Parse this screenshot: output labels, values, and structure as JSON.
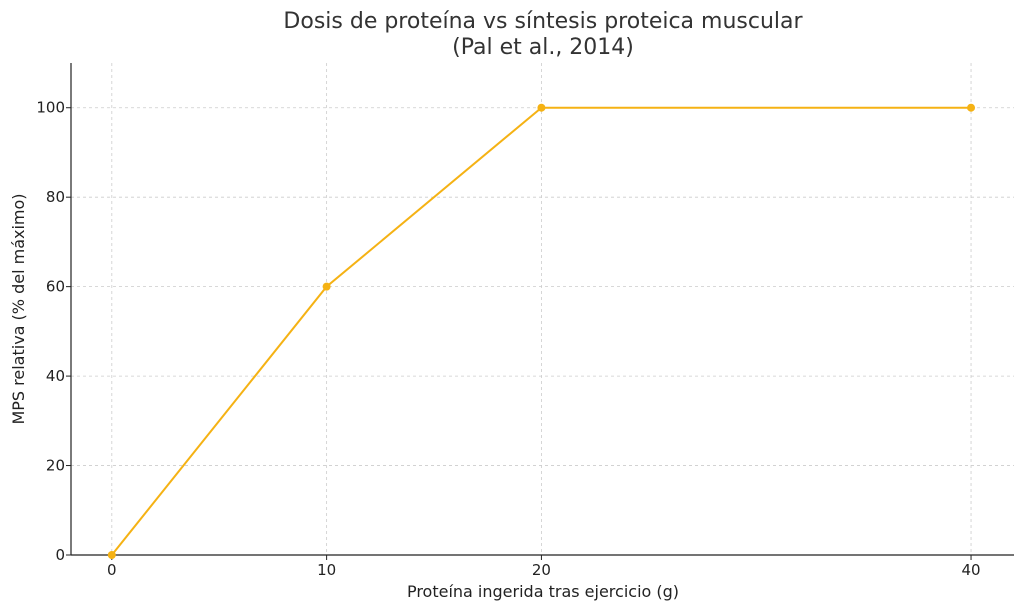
{
  "chart_data": {
    "type": "line",
    "title": "Dosis de proteína vs síntesis proteica muscular",
    "subtitle": "(Pal et al., 2014)",
    "xlabel": "Proteína ingerida tras ejercicio (g)",
    "ylabel": "MPS relativa (% del máximo)",
    "x": [
      0,
      10,
      20,
      40
    ],
    "series": [
      {
        "values": [
          0,
          60,
          100,
          100
        ],
        "color": "#f5b214"
      }
    ],
    "xticks": [
      0,
      10,
      20,
      40
    ],
    "yticks": [
      0,
      20,
      40,
      60,
      80,
      100
    ],
    "xlim": [
      -1.9,
      42
    ],
    "ylim": [
      0,
      110
    ],
    "grid": true,
    "legend": "none"
  }
}
